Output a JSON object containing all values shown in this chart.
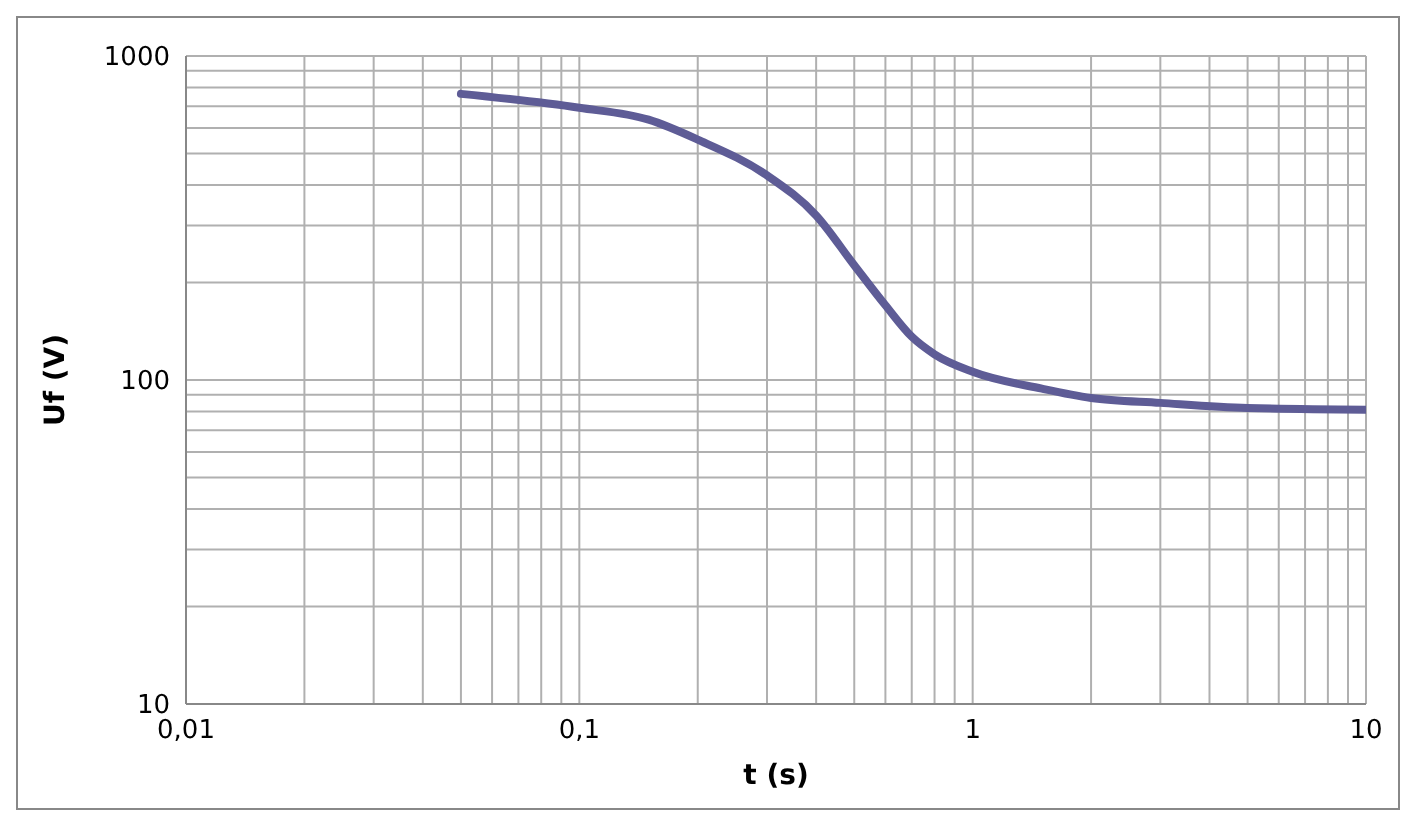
{
  "chart_data": {
    "type": "line",
    "xlabel": "t (s)",
    "ylabel": "Uf (V)",
    "log": "xy",
    "grid": true,
    "marker": "none",
    "line_style": "solid",
    "xlim": [
      0.01,
      10
    ],
    "ylim": [
      10,
      1000
    ],
    "xticks": [
      {
        "value": 0.01,
        "label": "0,01"
      },
      {
        "value": 0.02,
        "label": null
      },
      {
        "value": 0.03,
        "label": null
      },
      {
        "value": 0.04,
        "label": null
      },
      {
        "value": 0.05,
        "label": null
      },
      {
        "value": 0.06,
        "label": null
      },
      {
        "value": 0.07,
        "label": null
      },
      {
        "value": 0.08,
        "label": null
      },
      {
        "value": 0.09,
        "label": null
      },
      {
        "value": 0.1,
        "label": "0,1"
      },
      {
        "value": 0.2,
        "label": null
      },
      {
        "value": 0.3,
        "label": null
      },
      {
        "value": 0.4,
        "label": null
      },
      {
        "value": 0.5,
        "label": null
      },
      {
        "value": 0.6,
        "label": null
      },
      {
        "value": 0.7,
        "label": null
      },
      {
        "value": 0.8,
        "label": null
      },
      {
        "value": 0.9,
        "label": null
      },
      1,
      {
        "value": 2,
        "label": null
      },
      {
        "value": 3,
        "label": null
      },
      {
        "value": 4,
        "label": null
      },
      {
        "value": 5,
        "label": null
      },
      {
        "value": 6,
        "label": null
      },
      {
        "value": 7,
        "label": null
      },
      {
        "value": 8,
        "label": null
      },
      {
        "value": 9,
        "label": null
      },
      10
    ],
    "yticks": [
      10,
      {
        "value": 20,
        "label": null
      },
      {
        "value": 30,
        "label": null
      },
      {
        "value": 40,
        "label": null
      },
      {
        "value": 50,
        "label": null
      },
      {
        "value": 60,
        "label": null
      },
      {
        "value": 70,
        "label": null
      },
      {
        "value": 80,
        "label": null
      },
      {
        "value": 90,
        "label": null
      },
      100,
      {
        "value": 200,
        "label": null
      },
      {
        "value": 300,
        "label": null
      },
      {
        "value": 400,
        "label": null
      },
      {
        "value": 500,
        "label": null
      },
      {
        "value": 600,
        "label": null
      },
      {
        "value": 700,
        "label": null
      },
      {
        "value": 800,
        "label": null
      },
      {
        "value": 900,
        "label": null
      },
      1000
    ],
    "x": [
      0.05,
      0.1,
      0.15,
      0.2,
      0.3,
      0.4,
      0.5,
      0.6,
      0.7,
      0.8,
      1,
      1.5,
      2,
      3,
      5,
      10
    ],
    "series": [
      {
        "color": "#5e5c96",
        "values": [
          764,
          692,
          636,
          552,
          428,
          322,
          226,
          170,
          136,
          120,
          106,
          94,
          88,
          85,
          82,
          81
        ]
      }
    ]
  }
}
